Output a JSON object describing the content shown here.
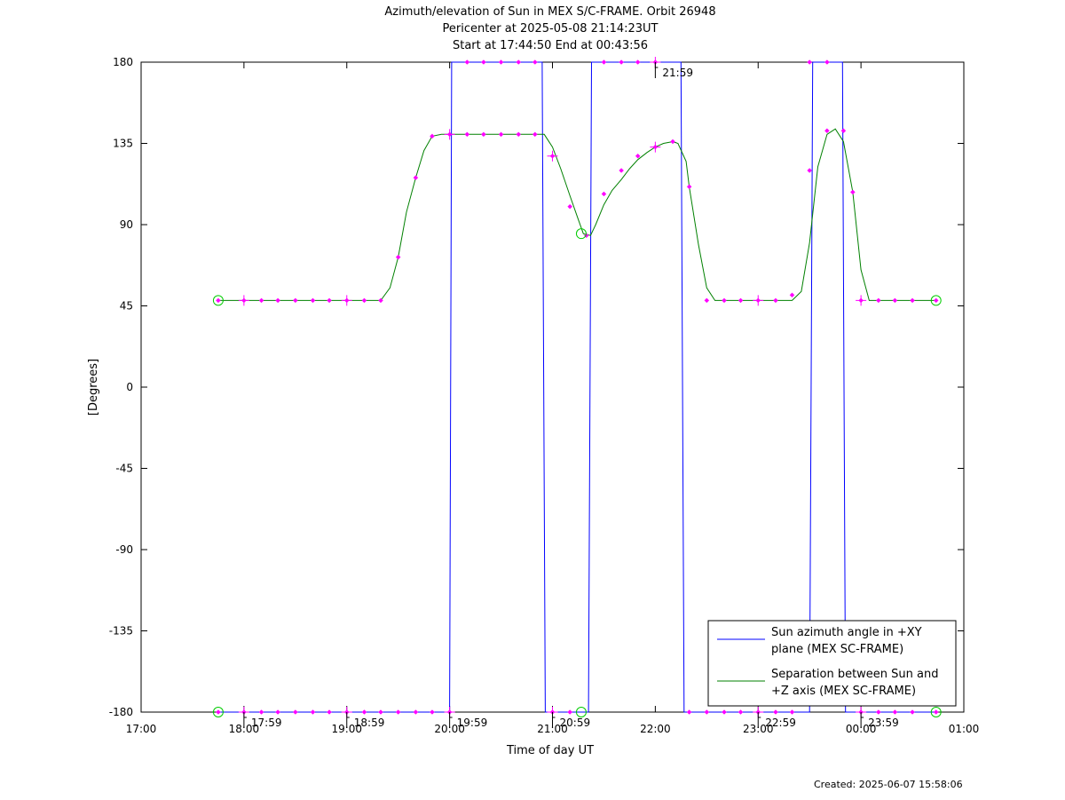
{
  "chart_data": {
    "type": "line",
    "title_lines": [
      "Azimuth/elevation of Sun in MEX S/C-FRAME.  Orbit 26948",
      "Pericenter at 2025-05-08 21:14:23UT",
      "Start at 17:44:50 End at 00:43:56"
    ],
    "xlabel": "Time of day UT",
    "ylabel": "[Degrees]",
    "x_unit": "hours",
    "xlim": [
      17.0,
      25.0
    ],
    "ylim": [
      -180,
      180
    ],
    "x_ticks": [
      {
        "value": 17,
        "label": "17:00"
      },
      {
        "value": 18,
        "label": "18:00"
      },
      {
        "value": 19,
        "label": "19:00"
      },
      {
        "value": 20,
        "label": "20:00"
      },
      {
        "value": 21,
        "label": "21:00"
      },
      {
        "value": 22,
        "label": "22:00"
      },
      {
        "value": 23,
        "label": "23:00"
      },
      {
        "value": 24,
        "label": "00:00"
      },
      {
        "value": 25,
        "label": "01:00"
      }
    ],
    "y_ticks": [
      {
        "value": 180,
        "label": "180"
      },
      {
        "value": 135,
        "label": "135"
      },
      {
        "value": 90,
        "label": "90"
      },
      {
        "value": 45,
        "label": "45"
      },
      {
        "value": 0,
        "label": "0"
      },
      {
        "value": -45,
        "label": "-45"
      },
      {
        "value": -90,
        "label": "-90"
      },
      {
        "value": -135,
        "label": "-135"
      },
      {
        "value": -180,
        "label": "-180"
      }
    ],
    "series": [
      {
        "name": "Sun azimuth angle in +XY plane (MEX SC-FRAME)",
        "legend_lines": [
          "Sun azimuth angle in +XY",
          "plane (MEX SC-FRAME)"
        ],
        "color": "#0000ff",
        "points": [
          [
            17.75,
            -180
          ],
          [
            20.0,
            -180
          ],
          [
            20.02,
            180
          ],
          [
            20.9,
            180
          ],
          [
            20.93,
            -180
          ],
          [
            21.35,
            -180
          ],
          [
            21.38,
            180
          ],
          [
            22.25,
            180
          ],
          [
            22.28,
            -180
          ],
          [
            23.5,
            -180
          ],
          [
            23.53,
            180
          ],
          [
            23.82,
            180
          ],
          [
            23.85,
            -180
          ],
          [
            24.73,
            -180
          ]
        ]
      },
      {
        "name": "Separation between Sun and +Z axis (MEX SC-FRAME)",
        "legend_lines": [
          "Separation between Sun and",
          "+Z axis (MEX SC-FRAME)"
        ],
        "color": "#008000",
        "points": [
          [
            17.75,
            48
          ],
          [
            19.33,
            48
          ],
          [
            19.42,
            55
          ],
          [
            19.5,
            72
          ],
          [
            19.58,
            97
          ],
          [
            19.67,
            116
          ],
          [
            19.75,
            131
          ],
          [
            19.83,
            139
          ],
          [
            19.92,
            140
          ],
          [
            20.92,
            140
          ],
          [
            21.0,
            133
          ],
          [
            21.08,
            121
          ],
          [
            21.17,
            106
          ],
          [
            21.25,
            93
          ],
          [
            21.3,
            85
          ],
          [
            21.37,
            84
          ],
          [
            21.42,
            90
          ],
          [
            21.5,
            101
          ],
          [
            21.58,
            109
          ],
          [
            21.67,
            115
          ],
          [
            21.75,
            121
          ],
          [
            21.83,
            126
          ],
          [
            21.92,
            130
          ],
          [
            22.0,
            133
          ],
          [
            22.08,
            135
          ],
          [
            22.17,
            136
          ],
          [
            22.22,
            135
          ],
          [
            22.3,
            125
          ],
          [
            22.33,
            111
          ],
          [
            22.42,
            79
          ],
          [
            22.5,
            55
          ],
          [
            22.58,
            48
          ],
          [
            23.33,
            48
          ],
          [
            23.42,
            53
          ],
          [
            23.5,
            80
          ],
          [
            23.58,
            122
          ],
          [
            23.67,
            140
          ],
          [
            23.75,
            143
          ],
          [
            23.83,
            136
          ],
          [
            23.92,
            108
          ],
          [
            24.0,
            65
          ],
          [
            24.08,
            48
          ],
          [
            24.73,
            48
          ]
        ]
      }
    ],
    "markers": {
      "color": "#ff00ff",
      "dots": [
        [
          17.75,
          48
        ],
        [
          18.0,
          48
        ],
        [
          18.17,
          48
        ],
        [
          18.33,
          48
        ],
        [
          18.5,
          48
        ],
        [
          18.67,
          48
        ],
        [
          18.83,
          48
        ],
        [
          19.0,
          48
        ],
        [
          19.17,
          48
        ],
        [
          19.33,
          48
        ],
        [
          19.5,
          72
        ],
        [
          19.67,
          116
        ],
        [
          19.83,
          139
        ],
        [
          20.0,
          140
        ],
        [
          20.17,
          140
        ],
        [
          20.33,
          140
        ],
        [
          20.5,
          140
        ],
        [
          20.67,
          140
        ],
        [
          20.83,
          140
        ],
        [
          21.0,
          128
        ],
        [
          21.17,
          100
        ],
        [
          21.33,
          84
        ],
        [
          21.5,
          107
        ],
        [
          21.67,
          120
        ],
        [
          21.83,
          128
        ],
        [
          22.0,
          133
        ],
        [
          22.17,
          136
        ],
        [
          22.33,
          111
        ],
        [
          22.5,
          48
        ],
        [
          22.67,
          48
        ],
        [
          22.83,
          48
        ],
        [
          23.0,
          48
        ],
        [
          23.17,
          48
        ],
        [
          23.33,
          51
        ],
        [
          23.5,
          120
        ],
        [
          23.67,
          142
        ],
        [
          23.83,
          142
        ],
        [
          23.92,
          108
        ],
        [
          24.0,
          48
        ],
        [
          24.17,
          48
        ],
        [
          24.33,
          48
        ],
        [
          24.5,
          48
        ],
        [
          24.73,
          48
        ],
        [
          20.17,
          180
        ],
        [
          20.33,
          180
        ],
        [
          20.5,
          180
        ],
        [
          20.67,
          180
        ],
        [
          20.83,
          180
        ],
        [
          21.5,
          180
        ],
        [
          21.67,
          180
        ],
        [
          21.83,
          180
        ],
        [
          22.0,
          180
        ],
        [
          23.5,
          180
        ],
        [
          23.67,
          180
        ],
        [
          17.75,
          -180
        ],
        [
          18.0,
          -180
        ],
        [
          18.17,
          -180
        ],
        [
          18.33,
          -180
        ],
        [
          18.5,
          -180
        ],
        [
          18.67,
          -180
        ],
        [
          18.83,
          -180
        ],
        [
          19.0,
          -180
        ],
        [
          19.17,
          -180
        ],
        [
          19.33,
          -180
        ],
        [
          19.5,
          -180
        ],
        [
          19.67,
          -180
        ],
        [
          19.83,
          -180
        ],
        [
          20.0,
          -180
        ],
        [
          21.0,
          -180
        ],
        [
          21.17,
          -180
        ],
        [
          22.33,
          -180
        ],
        [
          22.5,
          -180
        ],
        [
          22.67,
          -180
        ],
        [
          22.83,
          -180
        ],
        [
          23.0,
          -180
        ],
        [
          23.17,
          -180
        ],
        [
          23.33,
          -180
        ],
        [
          24.0,
          -180
        ],
        [
          24.17,
          -180
        ],
        [
          24.33,
          -180
        ],
        [
          24.5,
          -180
        ],
        [
          24.73,
          -180
        ]
      ],
      "crosses": [
        [
          18.0,
          48
        ],
        [
          19.0,
          48
        ],
        [
          20.0,
          140
        ],
        [
          21.0,
          128
        ],
        [
          22.0,
          133
        ],
        [
          23.0,
          48
        ],
        [
          24.0,
          48
        ],
        [
          18.0,
          -180
        ],
        [
          19.0,
          -180
        ],
        [
          20.0,
          -180
        ],
        [
          21.0,
          -180
        ],
        [
          23.0,
          -180
        ],
        [
          24.0,
          -180
        ],
        [
          22.0,
          180
        ]
      ],
      "circles": [
        [
          17.75,
          48
        ],
        [
          21.28,
          85
        ],
        [
          24.73,
          48
        ],
        [
          17.75,
          -180
        ],
        [
          21.28,
          -180
        ],
        [
          24.73,
          -180
        ]
      ],
      "circle_color": "#00cc00"
    },
    "time_annotations": [
      {
        "x": 18.0,
        "y": -180,
        "label": "17:59"
      },
      {
        "x": 19.0,
        "y": -180,
        "label": "18:59"
      },
      {
        "x": 20.0,
        "y": -180,
        "label": "19:59"
      },
      {
        "x": 21.0,
        "y": -180,
        "label": "20:59"
      },
      {
        "x": 22.0,
        "y": 180,
        "label": "21:59"
      },
      {
        "x": 23.0,
        "y": -180,
        "label": "22:59"
      },
      {
        "x": 24.0,
        "y": -180,
        "label": "23:59"
      }
    ],
    "legend_position": "bottom-right",
    "grid": false
  },
  "footer": {
    "created": "Created: 2025-06-07 15:58:06"
  }
}
